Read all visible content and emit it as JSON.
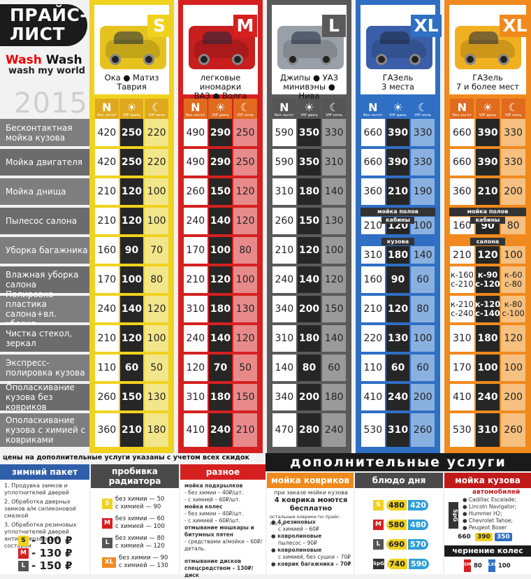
{
  "header": {
    "title_line1": "ПРАЙС-",
    "title_line2": "ЛИСТ",
    "brand_a": "Wash",
    "brand_b": "Wash",
    "tagline": "wash my world",
    "year": "2015"
  },
  "categories": [
    {
      "size": "S",
      "label1": "Ока ● Матиз",
      "label2": "Таврия",
      "color": "#f0d21e"
    },
    {
      "size": "M",
      "label1": "легковые иномарки",
      "label2": "ВАЗ ● Волга",
      "color": "#d62020"
    },
    {
      "size": "L",
      "label1": "Джипы ● УАЗ",
      "label2": "минивэны ● Нива",
      "color": "#5a5a5a"
    },
    {
      "size": "XL",
      "label1": "ГАЗель",
      "label2": "3 места",
      "color": "#2f6fc4"
    },
    {
      "size": "XL",
      "label1": "ГАЗель",
      "label2": "7 и более мест",
      "color": "#f08a1e"
    }
  ],
  "tiers": [
    {
      "icon": "N",
      "label": "без льгот"
    },
    {
      "icon": "☀",
      "label": "VIP день"
    },
    {
      "icon": "☾",
      "label": "VIP ночь"
    }
  ],
  "services": [
    {
      "name": "Бесконтактная мойка кузова",
      "prices": [
        [
          420,
          250,
          220
        ],
        [
          490,
          290,
          250
        ],
        [
          590,
          350,
          330
        ],
        [
          660,
          390,
          330
        ],
        [
          660,
          390,
          330
        ]
      ]
    },
    {
      "name": "Мойка двигателя",
      "prices": [
        [
          420,
          250,
          220
        ],
        [
          490,
          290,
          250
        ],
        [
          590,
          350,
          310
        ],
        [
          660,
          390,
          330
        ],
        [
          660,
          390,
          330
        ]
      ]
    },
    {
      "name": "Мойка днища",
      "prices": [
        [
          210,
          120,
          100
        ],
        [
          260,
          150,
          120
        ],
        [
          310,
          180,
          140
        ],
        [
          360,
          210,
          190
        ],
        [
          360,
          210,
          200
        ]
      ]
    },
    {
      "name": "Пылесос салона",
      "prices": [
        [
          210,
          120,
          100
        ],
        [
          240,
          140,
          120
        ],
        [
          260,
          150,
          130
        ],
        [
          210,
          120,
          100
        ],
        [
          160,
          90,
          80
        ]
      ]
    },
    {
      "name": "Уборка багажника",
      "prices": [
        [
          160,
          90,
          70
        ],
        [
          170,
          100,
          80
        ],
        [
          210,
          120,
          100
        ],
        [
          310,
          180,
          140
        ],
        [
          210,
          120,
          100
        ]
      ]
    },
    {
      "name": "Влажная уборка салона",
      "prices": [
        [
          170,
          100,
          80
        ],
        [
          210,
          120,
          100
        ],
        [
          240,
          140,
          120
        ],
        [
          160,
          90,
          60
        ],
        [
          "к-160 с-210",
          "к-90 с-120",
          "к-60 с-80"
        ]
      ]
    },
    {
      "name": "Полировка пластика салона+вл. уборка",
      "prices": [
        [
          240,
          140,
          120
        ],
        [
          310,
          180,
          130
        ],
        [
          340,
          200,
          150
        ],
        [
          210,
          120,
          80
        ],
        [
          "к-210 с-240",
          "к-120 с-140",
          "к-80 с-100"
        ]
      ]
    },
    {
      "name": "Чистка стекол, зеркал",
      "prices": [
        [
          210,
          120,
          100
        ],
        [
          240,
          140,
          120
        ],
        [
          310,
          180,
          140
        ],
        [
          220,
          130,
          100
        ],
        [
          310,
          180,
          120
        ]
      ]
    },
    {
      "name": "Экспресс-полировка кузова",
      "prices": [
        [
          110,
          60,
          50
        ],
        [
          120,
          70,
          50
        ],
        [
          140,
          80,
          60
        ],
        [
          110,
          60,
          60
        ],
        [
          170,
          100,
          100
        ]
      ]
    },
    {
      "name": "Ополаскивание кузова без ковриков",
      "prices": [
        [
          260,
          150,
          130
        ],
        [
          310,
          180,
          150
        ],
        [
          340,
          200,
          180
        ],
        [
          410,
          240,
          200
        ],
        [
          410,
          240,
          200
        ]
      ]
    },
    {
      "name": "Ополаскивание кузова с химией с ковриками",
      "prices": [
        [
          360,
          210,
          180
        ],
        [
          410,
          240,
          210
        ],
        [
          470,
          280,
          240
        ],
        [
          530,
          310,
          260
        ],
        [
          530,
          310,
          260
        ]
      ]
    }
  ],
  "floor_notes": {
    "xl3_title": "мойка полов",
    "xl3_sub1": "кабины",
    "xl3_sub2": "кузова",
    "xl7_title": "мойка полов",
    "xl7_sub1": "кабины",
    "xl7_sub2": "салона"
  },
  "bottom": {
    "notice": "цены на дополнительные услуги указаны с учетом всех скидок",
    "extra_title": "дополнительные услуги",
    "winter": {
      "title": "зимний пакет",
      "items": [
        "1. Продувка замков и уплотнителей дверей",
        "2. Обработка дверных замков а/м силиконовой смазкой",
        "3. Обработка резиновых уплотнителей дверей антизамерзающим составом"
      ],
      "prices": [
        {
          "size": "S",
          "price": "- 100 ₽"
        },
        {
          "size": "M",
          "price": "- 130 ₽"
        },
        {
          "size": "L",
          "price": "- 150 ₽"
        }
      ]
    },
    "radiator": {
      "title": "пробивка радиатора",
      "rows": [
        {
          "size": "S",
          "a": "без химии — 50",
          "b": "с химией — 90"
        },
        {
          "size": "M",
          "a": "без химии — 60",
          "b": "с химией — 100"
        },
        {
          "size": "L",
          "a": "без химии — 80",
          "b": "с химией — 120"
        },
        {
          "size": "XL",
          "a": "без химии — 90",
          "b": "с химией — 130"
        }
      ]
    },
    "misc": {
      "title": "разное",
      "lines": [
        "мойка подкрылков",
        "- без химии – 40₽/шт.",
        "- с химией – 60₽/шт.",
        "мойка колес",
        "- без химии – 40₽/шт.",
        "- с химией – 60₽/шт.",
        "отмывание мошкары и битумных пятен",
        "- средствами а/мойки – 60₽/деталь.",
        "",
        "отмывание дисков",
        "спецсредством – 130₽/диск"
      ]
    },
    "mats": {
      "title": "мойка ковриков",
      "line1": "при заказе мойки кузова",
      "line2": "4 коврика моются бесплатно",
      "line3": "остальные коврики по прайс-листу:",
      "items": [
        "● 4 резиновых",
        "с химией – 60₽",
        "● ковролиновые",
        "пылесос – 90₽",
        "● ковролиновые",
        "с химией, без сушки – 70₽",
        "● коврик багажника – 70₽"
      ]
    },
    "dish": {
      "title": "блюдо дня",
      "rows": [
        {
          "size": "S",
          "old": "480",
          "new": "420"
        },
        {
          "size": "M",
          "old": "580",
          "new": "480"
        },
        {
          "size": "L",
          "old": "690",
          "new": "570"
        },
        {
          "size": "SpG",
          "old": "740",
          "new": "590"
        }
      ]
    },
    "body": {
      "title": "мойка кузова",
      "sub": "автомобилей",
      "cars": [
        "● Cadillac Escalade;",
        "● Lincoln Navigator;",
        "● Hummer H2;",
        "● Chevrolet Tahoe;",
        "● Peugeot Boxer"
      ],
      "badge": "SpG",
      "p1": "660",
      "p2": "390",
      "p3": "350",
      "wheels_title": "чернение колес",
      "w1": "80",
      "w2": "100"
    }
  }
}
